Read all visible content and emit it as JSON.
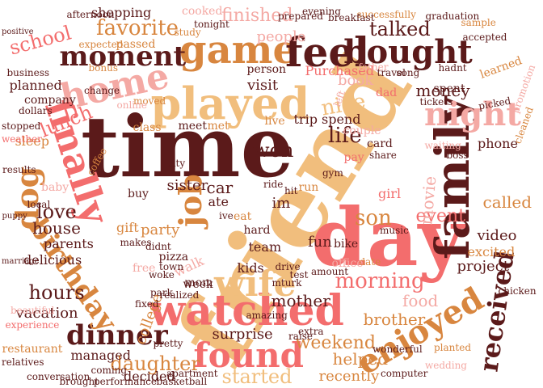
{
  "palette": {
    "dark": "#5b1a1a",
    "tan": "#f1be7d",
    "coral": "#f36d6d",
    "orange": "#d8863f",
    "pink": "#f4a9a4",
    "peach": "#f8d2b5"
  },
  "words": [
    {
      "text": "friend",
      "color": "tan"
    },
    {
      "text": "time",
      "color": "dark"
    },
    {
      "text": "day",
      "color": "coral"
    },
    {
      "text": "family",
      "color": "dark"
    },
    {
      "text": "watched",
      "color": "coral"
    },
    {
      "text": "played",
      "color": "tan"
    },
    {
      "text": "game",
      "color": "orange"
    },
    {
      "text": "feel",
      "color": "dark"
    },
    {
      "text": "bought",
      "color": "dark"
    },
    {
      "text": "home",
      "color": "pink"
    },
    {
      "text": "finally",
      "color": "coral"
    },
    {
      "text": "night",
      "color": "pink"
    },
    {
      "text": "moment",
      "color": "dark"
    },
    {
      "text": "found",
      "color": "coral"
    },
    {
      "text": "enjoyed",
      "color": "orange"
    },
    {
      "text": "wife",
      "color": "tan"
    },
    {
      "text": "dinner",
      "color": "dark"
    },
    {
      "text": "birthday",
      "color": "orange"
    },
    {
      "text": "received",
      "color": "dark"
    },
    {
      "text": "job",
      "color": "orange"
    },
    {
      "text": "dog",
      "color": "orange"
    },
    {
      "text": "morning",
      "color": "coral"
    },
    {
      "text": "favorite",
      "color": "orange"
    },
    {
      "text": "talked",
      "color": "dark"
    },
    {
      "text": "school",
      "color": "coral"
    },
    {
      "text": "finished",
      "color": "pink"
    },
    {
      "text": "daughter",
      "color": "orange"
    },
    {
      "text": "started",
      "color": "tan"
    },
    {
      "text": "life",
      "color": "dark"
    },
    {
      "text": "nice",
      "color": "tan"
    },
    {
      "text": "son",
      "color": "orange"
    },
    {
      "text": "event",
      "color": "coral"
    },
    {
      "text": "called",
      "color": "orange"
    },
    {
      "text": "love",
      "color": "dark"
    },
    {
      "text": "house",
      "color": "dark"
    },
    {
      "text": "hours",
      "color": "dark"
    },
    {
      "text": "lunch",
      "color": "coral"
    },
    {
      "text": "money",
      "color": "dark"
    },
    {
      "text": "people",
      "color": "pink"
    },
    {
      "text": "college",
      "color": "orange"
    },
    {
      "text": "weekend",
      "color": "orange"
    },
    {
      "text": "brother",
      "color": "orange"
    },
    {
      "text": "mother",
      "color": "dark"
    },
    {
      "text": "sister",
      "color": "dark"
    },
    {
      "text": "visit",
      "color": "dark"
    },
    {
      "text": "car",
      "color": "dark"
    },
    {
      "text": "won",
      "color": "dark"
    },
    {
      "text": "movie",
      "color": "pink"
    },
    {
      "text": "video",
      "color": "dark"
    },
    {
      "text": "book",
      "color": "pink"
    },
    {
      "text": "surprise",
      "color": "dark"
    },
    {
      "text": "project",
      "color": "dark"
    },
    {
      "text": "excited",
      "color": "orange"
    },
    {
      "text": "party",
      "color": "orange"
    },
    {
      "text": "gift",
      "color": "orange"
    },
    {
      "text": "phone",
      "color": "dark"
    },
    {
      "text": "spent",
      "color": "dark"
    },
    {
      "text": "spend",
      "color": "dark"
    },
    {
      "text": "trip",
      "color": "dark"
    },
    {
      "text": "food",
      "color": "pink"
    },
    {
      "text": "helped",
      "color": "orange"
    },
    {
      "text": "recently",
      "color": "orange"
    },
    {
      "text": "team",
      "color": "dark"
    },
    {
      "text": "kids",
      "color": "dark"
    },
    {
      "text": "vacation",
      "color": "dark"
    },
    {
      "text": "parents",
      "color": "dark"
    },
    {
      "text": "delicious",
      "color": "dark"
    },
    {
      "text": "managed",
      "color": "dark"
    },
    {
      "text": "decided",
      "color": "dark"
    },
    {
      "text": "shopping",
      "color": "dark"
    },
    {
      "text": "planned",
      "color": "dark"
    },
    {
      "text": "Purchased",
      "color": "coral"
    },
    {
      "text": "meet",
      "color": "dark"
    },
    {
      "text": "ate",
      "color": "dark"
    },
    {
      "text": "eat",
      "color": "orange"
    },
    {
      "text": "im",
      "color": "dark"
    },
    {
      "text": "ive",
      "color": "dark"
    },
    {
      "text": "hard",
      "color": "dark"
    },
    {
      "text": "pizza",
      "color": "dark"
    },
    {
      "text": "walk",
      "color": "pink"
    },
    {
      "text": "fun",
      "color": "dark"
    },
    {
      "text": "sleep",
      "color": "orange"
    },
    {
      "text": "girl",
      "color": "coral"
    },
    {
      "text": "baby",
      "color": "pink"
    },
    {
      "text": "mom",
      "color": "dark"
    },
    {
      "text": "cooked",
      "color": "pink"
    },
    {
      "text": "passed",
      "color": "orange"
    },
    {
      "text": "expected",
      "color": "orange"
    },
    {
      "text": "person",
      "color": "dark"
    },
    {
      "text": "couple",
      "color": "pink"
    },
    {
      "text": "class",
      "color": "orange"
    },
    {
      "text": "company",
      "color": "dark"
    },
    {
      "text": "business",
      "color": "dark"
    },
    {
      "text": "restaurant",
      "color": "orange"
    },
    {
      "text": "experience",
      "color": "coral"
    },
    {
      "text": "beautiful",
      "color": "pink"
    },
    {
      "text": "graduation",
      "color": "dark"
    },
    {
      "text": "successfully",
      "color": "orange"
    },
    {
      "text": "breakfast",
      "color": "dark"
    },
    {
      "text": "evening",
      "color": "dark"
    },
    {
      "text": "learned",
      "color": "orange"
    },
    {
      "text": "promotion",
      "color": "pink"
    },
    {
      "text": "cleaned",
      "color": "orange"
    },
    {
      "text": "tickets",
      "color": "dark"
    },
    {
      "text": "card",
      "color": "dark"
    },
    {
      "text": "share",
      "color": "dark"
    },
    {
      "text": "bike",
      "color": "dark"
    },
    {
      "text": "date",
      "color": "orange"
    },
    {
      "text": "office",
      "color": "pink"
    },
    {
      "text": "computer",
      "color": "dark"
    },
    {
      "text": "dollars",
      "color": "dark"
    },
    {
      "text": "coffee",
      "color": "orange"
    },
    {
      "text": "weather",
      "color": "coral"
    },
    {
      "text": "bonus",
      "color": "orange"
    },
    {
      "text": "dad",
      "color": "coral"
    },
    {
      "text": "father",
      "color": "pink"
    },
    {
      "text": "local",
      "color": "dark"
    },
    {
      "text": "moved",
      "color": "orange"
    },
    {
      "text": "amazing",
      "color": "dark"
    },
    {
      "text": "free",
      "color": "pink"
    },
    {
      "text": "town",
      "color": "dark"
    },
    {
      "text": "woke",
      "color": "dark"
    },
    {
      "text": "makes",
      "color": "dark"
    },
    {
      "text": "didnt",
      "color": "dark"
    },
    {
      "text": "buy",
      "color": "dark"
    },
    {
      "text": "ride",
      "color": "dark"
    },
    {
      "text": "run",
      "color": "orange"
    },
    {
      "text": "hit",
      "color": "dark"
    },
    {
      "text": "gym",
      "color": "dark"
    },
    {
      "text": "pay",
      "color": "coral"
    },
    {
      "text": "boss",
      "color": "dark"
    },
    {
      "text": "music",
      "color": "dark"
    },
    {
      "text": "waiting",
      "color": "pink"
    },
    {
      "text": "travel",
      "color": "dark"
    },
    {
      "text": "tonight",
      "color": "dark"
    },
    {
      "text": "study",
      "color": "orange"
    },
    {
      "text": "stopped",
      "color": "dark"
    },
    {
      "text": "results",
      "color": "dark"
    },
    {
      "text": "afternoon",
      "color": "dark"
    },
    {
      "text": "performance",
      "color": "dark"
    },
    {
      "text": "basketball",
      "color": "dark"
    },
    {
      "text": "relatives",
      "color": "dark"
    },
    {
      "text": "marriage",
      "color": "dark"
    },
    {
      "text": "wedding",
      "color": "pink"
    },
    {
      "text": "drive",
      "color": "dark"
    },
    {
      "text": "test",
      "color": "dark"
    },
    {
      "text": "live",
      "color": "orange"
    },
    {
      "text": "met",
      "color": "orange"
    },
    {
      "text": "week",
      "color": "dark"
    },
    {
      "text": "city",
      "color": "dark"
    },
    {
      "text": "park",
      "color": "dark"
    },
    {
      "text": "left",
      "color": "pink"
    },
    {
      "text": "song",
      "color": "dark"
    },
    {
      "text": "picked",
      "color": "dark"
    },
    {
      "text": "sample",
      "color": "orange"
    },
    {
      "text": "accepted",
      "color": "dark"
    },
    {
      "text": "hadnt",
      "color": "dark"
    },
    {
      "text": "prepared",
      "color": "dark"
    },
    {
      "text": "raise",
      "color": "dark"
    },
    {
      "text": "extra",
      "color": "dark"
    },
    {
      "text": "wonderful",
      "color": "dark"
    },
    {
      "text": "change",
      "color": "dark"
    },
    {
      "text": "online",
      "color": "pink"
    },
    {
      "text": "brought",
      "color": "dark"
    },
    {
      "text": "coming",
      "color": "dark"
    },
    {
      "text": "pretty",
      "color": "dark"
    },
    {
      "text": "conversation",
      "color": "dark"
    },
    {
      "text": "apartment",
      "color": "dark"
    },
    {
      "text": "planted",
      "color": "orange"
    },
    {
      "text": "realized",
      "color": "dark"
    },
    {
      "text": "puppy",
      "color": "dark"
    },
    {
      "text": "chicken",
      "color": "dark"
    },
    {
      "text": "positive",
      "color": "dark"
    },
    {
      "text": "amount",
      "color": "dark"
    },
    {
      "text": "fixed",
      "color": "dark"
    },
    {
      "text": "mturk",
      "color": "dark"
    }
  ]
}
